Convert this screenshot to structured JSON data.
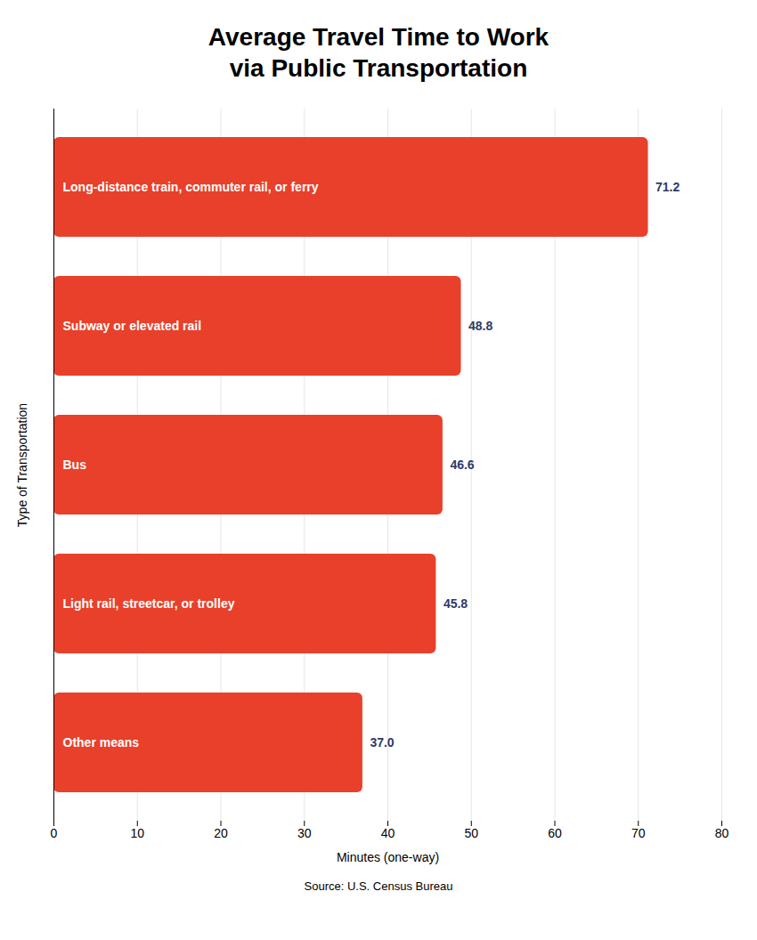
{
  "chart_data": {
    "type": "bar",
    "orientation": "horizontal",
    "title": "Average Travel Time to Work\nvia Public Transportation",
    "categories": [
      "Other means",
      "Light rail, streetcar, or trolley",
      "Bus",
      "Subway or elevated rail",
      "Long-distance train, commuter rail, or ferry"
    ],
    "values": [
      37.0,
      45.8,
      46.6,
      48.8,
      71.2
    ],
    "value_labels": [
      "37.0",
      "45.8",
      "46.6",
      "48.8",
      "71.2"
    ],
    "data_labels": true,
    "color": "#E8402A",
    "xlabel": "Minutes (one-way)",
    "ylabel": "Type of Transportation",
    "xlim": [
      0,
      80
    ],
    "xticks": [
      0,
      10,
      20,
      30,
      40,
      50,
      60,
      70,
      80
    ],
    "grid": true,
    "tick_labels": "x",
    "annotations": [
      "Source: U.S. Census Bureau"
    ]
  }
}
